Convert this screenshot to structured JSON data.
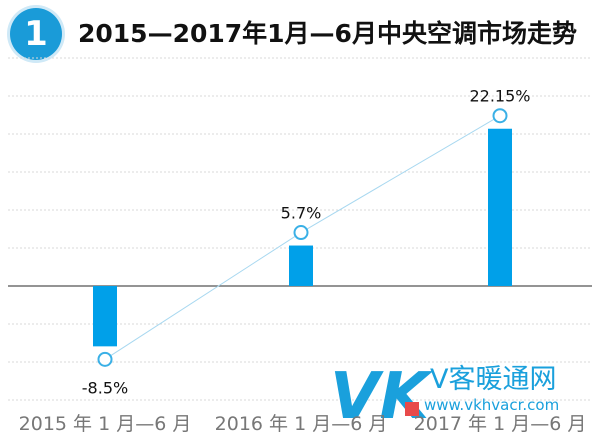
{
  "badge_number": "1",
  "chart_data": {
    "type": "bar",
    "title": "2015—2017年1月—6月中央空调市场走势",
    "categories": [
      "2015 年 1 月—6 月",
      "2016 年 1 月—6 月",
      "2017 年 1 月—6 月"
    ],
    "values": [
      -8.5,
      5.7,
      22.15
    ],
    "data_labels": [
      "-8.5%",
      "5.7%",
      "22.15%"
    ],
    "trend_line": true,
    "ylim": [
      -10.5,
      28
    ],
    "grid": true,
    "colors": {
      "bar": "#00a0e9",
      "line": "#a8d8f0",
      "marker": "#3ab0e6",
      "grid": "#d9d9d9",
      "zero_line": "#555555"
    }
  },
  "watermark": {
    "brand_letters": "VK",
    "brand_name": "V客暖通网",
    "url": "www.vkhvacr.com"
  }
}
